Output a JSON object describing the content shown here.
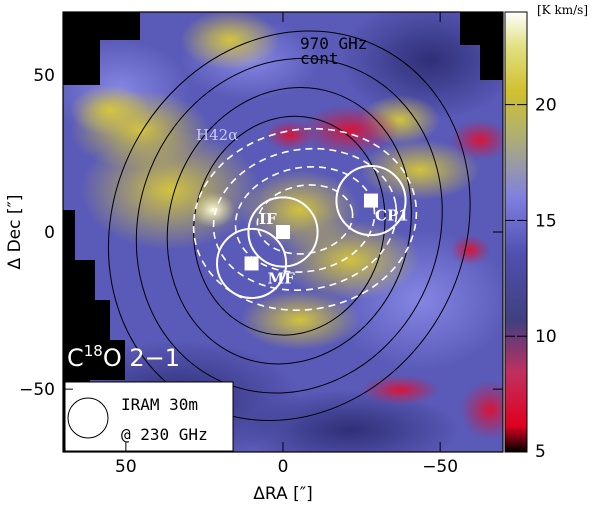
{
  "chart_data": {
    "type": "heatmap",
    "xlabel": "ΔRA [″]",
    "ylabel": "Δ Dec [″]",
    "xlim": [
      70,
      -70
    ],
    "ylim": [
      -70,
      70
    ],
    "x_ticks": [
      50,
      0,
      -50
    ],
    "x_tick_labels": [
      "50",
      "0",
      "−50"
    ],
    "y_ticks": [
      50,
      0,
      -50
    ],
    "y_tick_labels": [
      "50",
      "0",
      "−50"
    ],
    "colorbar": {
      "unit": "[K km/s]",
      "range": [
        5,
        24
      ],
      "ticks": [
        5,
        10,
        15,
        20
      ],
      "tick_labels": [
        "5",
        "10",
        "15",
        "20"
      ]
    },
    "map_label_1": "C¹⁸O 2−1",
    "map_label_2": "C",
    "map_label_sup": "18",
    "map_label_3": "O 2−1",
    "contour_label_1": "970 GHz",
    "contour_label_2": "cont",
    "hii_label": "H42α",
    "positions": [
      {
        "name": "IF",
        "x": 0,
        "y": 0
      },
      {
        "name": "MF",
        "x": 10,
        "y": -10
      },
      {
        "name": "CP1",
        "x": -28,
        "y": 10
      }
    ],
    "beam_legend_line1": "IRAM 30m",
    "beam_legend_line2": "@ 230 GHz",
    "beam_diameter_arcsec": 22,
    "colors": {
      "low": "#ff0000",
      "mid": "#3a3aa0",
      "high": "#ffffff",
      "yellow": "#c8c030",
      "contour": "#000000",
      "dashed": "#ffffff"
    }
  }
}
